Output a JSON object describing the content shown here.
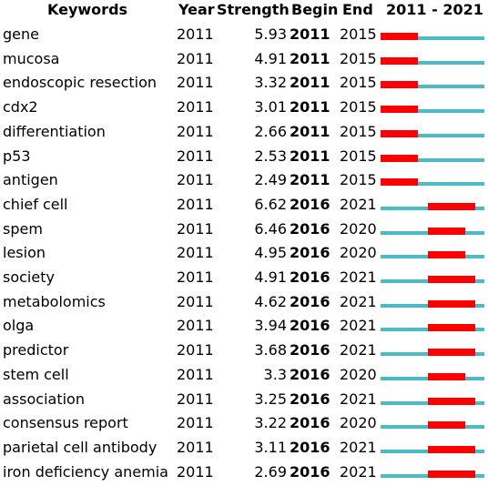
{
  "chart_data": {
    "type": "table",
    "columns": [
      "Keywords",
      "Year",
      "Strength",
      "Begin",
      "End",
      "2011 - 2021"
    ],
    "range": [
      2011,
      2021
    ],
    "colors": {
      "burst": "#ff0000",
      "baseline": "#4cbcc4"
    },
    "rows": [
      {
        "keyword": "gene",
        "year": "2011",
        "strength": "5.93",
        "begin": "2011",
        "end": "2015"
      },
      {
        "keyword": "mucosa",
        "year": "2011",
        "strength": "4.91",
        "begin": "2011",
        "end": "2015"
      },
      {
        "keyword": "endoscopic resection",
        "year": "2011",
        "strength": "3.32",
        "begin": "2011",
        "end": "2015"
      },
      {
        "keyword": "cdx2",
        "year": "2011",
        "strength": "3.01",
        "begin": "2011",
        "end": "2015"
      },
      {
        "keyword": "differentiation",
        "year": "2011",
        "strength": "2.66",
        "begin": "2011",
        "end": "2015"
      },
      {
        "keyword": "p53",
        "year": "2011",
        "strength": "2.53",
        "begin": "2011",
        "end": "2015"
      },
      {
        "keyword": "antigen",
        "year": "2011",
        "strength": "2.49",
        "begin": "2011",
        "end": "2015"
      },
      {
        "keyword": "chief cell",
        "year": "2011",
        "strength": "6.62",
        "begin": "2016",
        "end": "2021"
      },
      {
        "keyword": "spem",
        "year": "2011",
        "strength": "6.46",
        "begin": "2016",
        "end": "2020"
      },
      {
        "keyword": "lesion",
        "year": "2011",
        "strength": "4.95",
        "begin": "2016",
        "end": "2020"
      },
      {
        "keyword": "society",
        "year": "2011",
        "strength": "4.91",
        "begin": "2016",
        "end": "2021"
      },
      {
        "keyword": "metabolomics",
        "year": "2011",
        "strength": "4.62",
        "begin": "2016",
        "end": "2021"
      },
      {
        "keyword": "olga",
        "year": "2011",
        "strength": "3.94",
        "begin": "2016",
        "end": "2021"
      },
      {
        "keyword": "predictor",
        "year": "2011",
        "strength": "3.68",
        "begin": "2016",
        "end": "2021"
      },
      {
        "keyword": "stem cell",
        "year": "2011",
        "strength": "3.3",
        "begin": "2016",
        "end": "2020"
      },
      {
        "keyword": "association",
        "year": "2011",
        "strength": "3.25",
        "begin": "2016",
        "end": "2021"
      },
      {
        "keyword": "consensus report",
        "year": "2011",
        "strength": "3.22",
        "begin": "2016",
        "end": "2020"
      },
      {
        "keyword": "parietal cell antibody",
        "year": "2011",
        "strength": "3.11",
        "begin": "2016",
        "end": "2021"
      },
      {
        "keyword": "iron deficiency anemia",
        "year": "2011",
        "strength": "2.69",
        "begin": "2016",
        "end": "2021"
      }
    ]
  }
}
